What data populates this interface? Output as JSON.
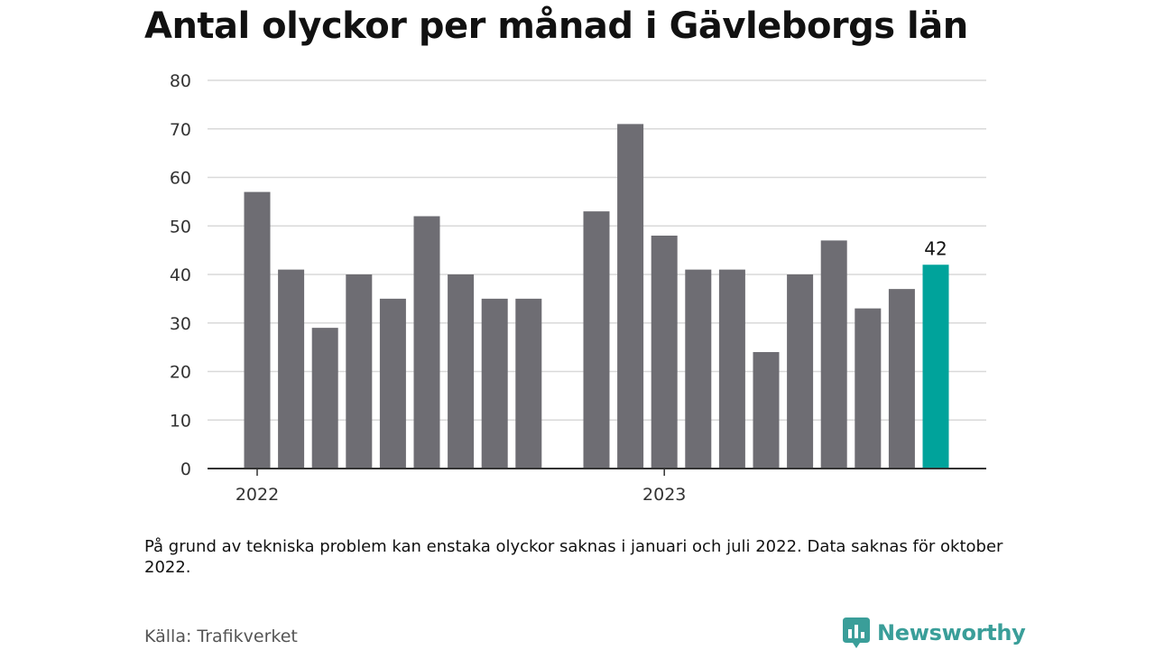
{
  "title": "Antal olyckor per månad i Gävleborgs län",
  "note": "På grund av tekniska problem kan enstaka olyckor saknas i januari och juli 2022. Data saknas för oktober 2022.",
  "source": "Källa: Trafikverket",
  "brand": {
    "name": "Newsworthy",
    "icon": "newsworthy-logo-icon",
    "color": "#3a9e99"
  },
  "colors": {
    "bar": "#6e6d73",
    "highlight": "#00a39b",
    "grid": "#d9d9d9",
    "axis": "#333333"
  },
  "chart_data": {
    "type": "bar",
    "categories": [
      "2022-01",
      "2022-02",
      "2022-03",
      "2022-04",
      "2022-05",
      "2022-06",
      "2022-07",
      "2022-08",
      "2022-09",
      "2022-10",
      "2022-11",
      "2022-12",
      "2023-01",
      "2023-02",
      "2023-03",
      "2023-04",
      "2023-05",
      "2023-06",
      "2023-07",
      "2023-08",
      "2023-09"
    ],
    "values": [
      57,
      41,
      29,
      40,
      35,
      52,
      40,
      35,
      35,
      null,
      53,
      71,
      48,
      41,
      41,
      24,
      40,
      47,
      33,
      37,
      42
    ],
    "ylim": [
      0,
      80
    ],
    "yticks": [
      0,
      10,
      20,
      30,
      40,
      50,
      60,
      70,
      80
    ],
    "xticks": [
      {
        "label": "2022",
        "category": "2022-01"
      },
      {
        "label": "2023",
        "category": "2023-01"
      }
    ],
    "highlight": {
      "category": "2023-09",
      "label": "42"
    },
    "grid": true,
    "legend": "none"
  }
}
